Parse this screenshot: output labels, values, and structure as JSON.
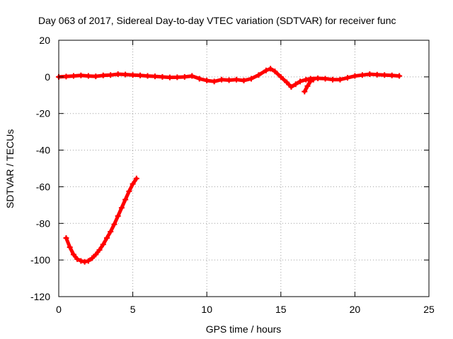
{
  "chart_data": {
    "type": "scatter",
    "title": "Day 063 of 2017, Sidereal Day-to-day VTEC variation (SDTVAR) for receiver func",
    "xlabel": "GPS time / hours",
    "ylabel": "SDTVAR / TECUs",
    "xlim": [
      0,
      25
    ],
    "ylim": [
      -120,
      20
    ],
    "x_ticks": [
      0,
      5,
      10,
      15,
      20,
      25
    ],
    "y_ticks": [
      -120,
      -100,
      -80,
      -60,
      -40,
      -20,
      0,
      20
    ],
    "x_tick_labels": [
      "0",
      "5",
      "10",
      "15",
      "20",
      "25"
    ],
    "y_tick_labels": [
      "-120",
      "-100",
      "-80",
      "-60",
      "-40",
      "-20",
      "0",
      "20"
    ],
    "grid": true,
    "series": [
      {
        "name": "main trace",
        "color": "#ff0000",
        "x": [
          0.0,
          0.5,
          1.0,
          1.5,
          2.0,
          2.5,
          3.0,
          3.5,
          4.0,
          4.5,
          5.0,
          5.5,
          6.0,
          6.5,
          7.0,
          7.5,
          8.0,
          8.5,
          9.0,
          9.5,
          10.0,
          10.5,
          11.0,
          11.5,
          12.0,
          12.5,
          13.0,
          13.5,
          14.0,
          14.3,
          14.6,
          15.0,
          15.4,
          15.7,
          16.0,
          16.3,
          16.7,
          17.0,
          17.5,
          18.0,
          18.5,
          19.0,
          19.5,
          20.0,
          20.5,
          21.0,
          21.5,
          22.0,
          22.5,
          23.0
        ],
        "y": [
          0.0,
          0.2,
          0.5,
          0.8,
          0.5,
          0.3,
          0.8,
          1.0,
          1.5,
          1.3,
          1.0,
          0.8,
          0.5,
          0.3,
          0.0,
          -0.3,
          -0.2,
          0.0,
          0.5,
          -1.0,
          -2.0,
          -2.5,
          -1.5,
          -1.8,
          -1.5,
          -2.0,
          -1.0,
          1.0,
          3.5,
          4.5,
          3.0,
          0.0,
          -3.0,
          -5.5,
          -4.0,
          -2.5,
          -1.5,
          -1.0,
          -0.8,
          -1.0,
          -1.5,
          -1.5,
          -0.5,
          0.5,
          1.0,
          1.5,
          1.2,
          1.0,
          0.8,
          0.5
        ]
      },
      {
        "name": "dip branch",
        "color": "#ff0000",
        "x": [
          16.6,
          16.8,
          17.0,
          17.2
        ],
        "y": [
          -8.0,
          -5.0,
          -2.5,
          -1.5
        ]
      },
      {
        "name": "early curve",
        "color": "#ff0000",
        "x": [
          0.5,
          0.75,
          1.0,
          1.25,
          1.5,
          1.75,
          2.0,
          2.25,
          2.5,
          2.75,
          3.0,
          3.25,
          3.5,
          3.75,
          4.0,
          4.25,
          4.5,
          4.75,
          5.0,
          5.25
        ],
        "y": [
          -88.0,
          -93.0,
          -97.0,
          -99.5,
          -100.5,
          -101.0,
          -100.5,
          -99.0,
          -97.0,
          -94.5,
          -91.5,
          -88.0,
          -84.5,
          -80.5,
          -76.0,
          -71.5,
          -67.0,
          -62.5,
          -58.5,
          -55.5
        ]
      }
    ]
  }
}
